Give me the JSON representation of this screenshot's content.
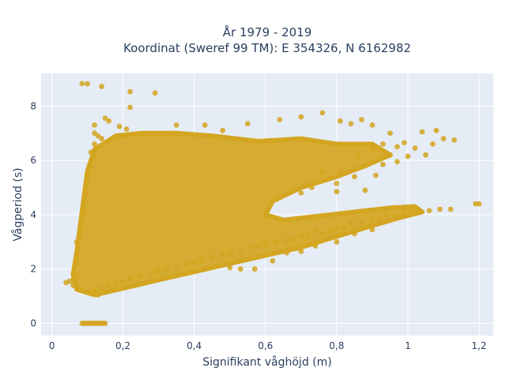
{
  "chart_data": {
    "type": "scatter",
    "title_lines": [
      "År 1979 - 2019",
      "Koordinat (Sweref 99 TM): E 354326, N 6162982"
    ],
    "xlabel": "Signifikant våghöjd (m)",
    "ylabel": "Vågperiod (s)",
    "xlim": [
      -0.03,
      1.24
    ],
    "ylim": [
      -0.45,
      9.2
    ],
    "x_ticks": [
      0,
      0.2,
      0.4,
      0.6,
      0.8,
      1,
      1.2
    ],
    "x_tick_labels": [
      "0",
      "0,2",
      "0,4",
      "0,6",
      "0,8",
      "1",
      "1,2"
    ],
    "y_ticks": [
      0,
      2,
      4,
      6,
      8
    ],
    "y_tick_labels": [
      "0",
      "2",
      "4",
      "6",
      "8"
    ],
    "grid": true,
    "point_color": "#d4a520",
    "background_color": "#e5ecf6",
    "points": [
      [
        0.085,
        8.83
      ],
      [
        0.1,
        8.82
      ],
      [
        0.14,
        8.72
      ],
      [
        0.22,
        8.53
      ],
      [
        0.29,
        8.48
      ],
      [
        0.22,
        7.95
      ],
      [
        0.15,
        7.55
      ],
      [
        0.16,
        7.45
      ],
      [
        0.12,
        7.3
      ],
      [
        0.19,
        7.25
      ],
      [
        0.21,
        7.15
      ],
      [
        0.35,
        7.3
      ],
      [
        0.43,
        7.3
      ],
      [
        0.48,
        7.1
      ],
      [
        0.55,
        7.35
      ],
      [
        0.64,
        7.5
      ],
      [
        0.7,
        7.6
      ],
      [
        0.76,
        7.75
      ],
      [
        0.81,
        7.45
      ],
      [
        0.84,
        7.35
      ],
      [
        0.87,
        7.5
      ],
      [
        0.9,
        7.3
      ],
      [
        0.95,
        7.0
      ],
      [
        0.99,
        6.65
      ],
      [
        1.04,
        7.05
      ],
      [
        1.08,
        7.1
      ],
      [
        1.1,
        6.8
      ],
      [
        1.13,
        6.75
      ],
      [
        1.07,
        6.6
      ],
      [
        1.02,
        6.45
      ],
      [
        0.93,
        6.6
      ],
      [
        0.97,
        6.5
      ],
      [
        0.9,
        6.4
      ],
      [
        0.86,
        6.2
      ],
      [
        0.95,
        6.2
      ],
      [
        1.0,
        6.15
      ],
      [
        1.05,
        6.2
      ],
      [
        0.97,
        5.95
      ],
      [
        0.93,
        5.85
      ],
      [
        0.91,
        5.45
      ],
      [
        0.88,
        5.8
      ],
      [
        0.81,
        5.55
      ],
      [
        0.85,
        5.4
      ],
      [
        0.8,
        4.85
      ],
      [
        0.88,
        4.9
      ],
      [
        0.8,
        5.15
      ],
      [
        0.76,
        5.55
      ],
      [
        0.73,
        5.0
      ],
      [
        0.7,
        4.8
      ],
      [
        1.19,
        4.4
      ],
      [
        1.2,
        4.4
      ],
      [
        1.12,
        4.2
      ],
      [
        1.09,
        4.2
      ],
      [
        1.06,
        4.15
      ],
      [
        1.03,
        4.15
      ],
      [
        1.01,
        4.2
      ],
      [
        0.99,
        4.05
      ],
      [
        0.97,
        3.95
      ],
      [
        0.94,
        4.0
      ],
      [
        0.92,
        3.9
      ],
      [
        0.9,
        3.8
      ],
      [
        0.87,
        3.7
      ],
      [
        0.84,
        3.7
      ],
      [
        0.82,
        3.55
      ],
      [
        0.8,
        3.5
      ],
      [
        0.78,
        3.4
      ],
      [
        0.76,
        3.3
      ],
      [
        0.74,
        3.4
      ],
      [
        0.72,
        3.25
      ],
      [
        0.7,
        3.2
      ],
      [
        0.68,
        3.1
      ],
      [
        0.66,
        3.05
      ],
      [
        0.63,
        3.0
      ],
      [
        0.6,
        2.95
      ],
      [
        0.58,
        2.85
      ],
      [
        0.56,
        2.8
      ],
      [
        0.53,
        2.7
      ],
      [
        0.5,
        2.6
      ],
      [
        0.48,
        2.55
      ],
      [
        0.45,
        2.45
      ],
      [
        0.42,
        2.35
      ],
      [
        0.4,
        2.25
      ],
      [
        0.38,
        2.2
      ],
      [
        0.35,
        2.1
      ],
      [
        0.32,
        2.0
      ],
      [
        0.3,
        1.95
      ],
      [
        0.28,
        1.85
      ],
      [
        0.25,
        1.75
      ],
      [
        0.22,
        1.65
      ],
      [
        0.2,
        1.55
      ],
      [
        0.18,
        1.45
      ],
      [
        0.16,
        1.4
      ],
      [
        0.14,
        1.3
      ],
      [
        0.12,
        1.2
      ],
      [
        0.11,
        1.1
      ],
      [
        0.1,
        1.15
      ],
      [
        0.13,
        1.05
      ],
      [
        0.08,
        1.25
      ],
      [
        0.06,
        1.4
      ],
      [
        0.05,
        1.55
      ],
      [
        0.04,
        1.5
      ],
      [
        0.06,
        1.6
      ],
      [
        0.07,
        1.8
      ],
      [
        0.57,
        2.0
      ],
      [
        0.53,
        2.0
      ],
      [
        0.5,
        2.05
      ],
      [
        0.62,
        2.3
      ],
      [
        0.66,
        2.6
      ],
      [
        0.7,
        2.65
      ],
      [
        0.74,
        2.85
      ],
      [
        0.8,
        3.0
      ],
      [
        0.85,
        3.3
      ],
      [
        0.9,
        3.45
      ],
      [
        0.08,
        3.4
      ],
      [
        0.07,
        3.0
      ],
      [
        0.07,
        2.6
      ],
      [
        0.07,
        2.3
      ],
      [
        0.08,
        3.6
      ],
      [
        0.09,
        4.0
      ],
      [
        0.09,
        4.5
      ],
      [
        0.1,
        4.8
      ],
      [
        0.1,
        5.3
      ],
      [
        0.11,
        5.8
      ],
      [
        0.11,
        6.3
      ],
      [
        0.12,
        6.6
      ],
      [
        0.13,
        6.9
      ],
      [
        0.12,
        7.0
      ],
      [
        0.14,
        6.8
      ],
      [
        0.085,
        0.0
      ],
      [
        0.09,
        0.0
      ],
      [
        0.095,
        0.0
      ],
      [
        0.1,
        0.0
      ],
      [
        0.105,
        0.0
      ],
      [
        0.11,
        0.0
      ],
      [
        0.115,
        0.0
      ],
      [
        0.12,
        0.0
      ],
      [
        0.125,
        0.0
      ],
      [
        0.13,
        0.0
      ],
      [
        0.135,
        0.0
      ],
      [
        0.14,
        0.0
      ],
      [
        0.145,
        0.0
      ],
      [
        0.15,
        0.0
      ]
    ],
    "regions": [
      {
        "points": [
          [
            0.07,
            1.25
          ],
          [
            0.12,
            1.05
          ],
          [
            0.22,
            1.35
          ],
          [
            0.3,
            1.6
          ],
          [
            0.4,
            1.9
          ],
          [
            0.5,
            2.2
          ],
          [
            0.6,
            2.5
          ],
          [
            0.7,
            2.8
          ],
          [
            0.8,
            3.2
          ],
          [
            0.9,
            3.6
          ],
          [
            0.98,
            3.9
          ],
          [
            1.04,
            4.1
          ],
          [
            1.02,
            4.3
          ],
          [
            0.95,
            4.25
          ],
          [
            0.85,
            4.1
          ],
          [
            0.75,
            3.95
          ],
          [
            0.65,
            3.8
          ],
          [
            0.6,
            4.0
          ],
          [
            0.62,
            4.5
          ],
          [
            0.7,
            5.0
          ],
          [
            0.8,
            5.4
          ],
          [
            0.88,
            5.8
          ],
          [
            0.95,
            6.2
          ],
          [
            0.9,
            6.6
          ],
          [
            0.8,
            6.6
          ],
          [
            0.7,
            6.8
          ],
          [
            0.58,
            6.7
          ],
          [
            0.45,
            6.9
          ],
          [
            0.35,
            7.0
          ],
          [
            0.25,
            7.0
          ],
          [
            0.18,
            6.9
          ],
          [
            0.12,
            6.4
          ],
          [
            0.1,
            5.6
          ],
          [
            0.09,
            4.6
          ],
          [
            0.08,
            3.6
          ],
          [
            0.07,
            2.6
          ],
          [
            0.06,
            1.8
          ]
        ]
      }
    ]
  }
}
